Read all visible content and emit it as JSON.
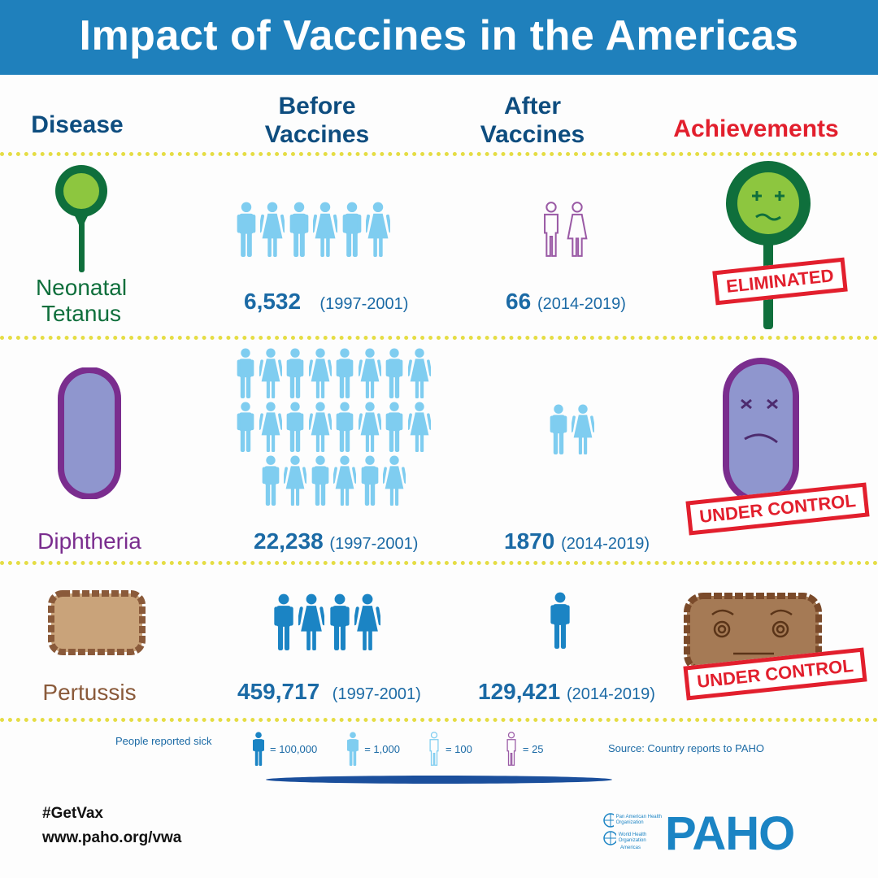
{
  "title": "Impact of Vaccines in the Americas",
  "columns": {
    "disease": "Disease",
    "before": "Before\nVaccines",
    "after": "After\nVaccines",
    "achievements": "Achievements"
  },
  "rows": [
    {
      "name": "Neonatal\nTetanus",
      "before_value": "6,532",
      "before_years": "(1997-2001)",
      "after_value": "66",
      "after_years": "(2014-2019)",
      "stamp": "ELIMINATED",
      "color": "#0f6f3c"
    },
    {
      "name": "Diphtheria",
      "before_value": "22,238",
      "before_years": "(1997-2001)",
      "after_value": "1870",
      "after_years": "(2014-2019)",
      "stamp": "UNDER CONTROL",
      "color": "#7a2d8e"
    },
    {
      "name": "Pertussis",
      "before_value": "459,717",
      "before_years": "(1997-2001)",
      "after_value": "129,421",
      "after_years": "(2014-2019)",
      "stamp": "UNDER CONTROL",
      "color": "#8a5a3a"
    }
  ],
  "legend": {
    "label": "People reported sick",
    "items": [
      "= 100,000",
      "= 1,000",
      "= 100",
      "= 25"
    ],
    "source": "Source: Country reports to PAHO"
  },
  "footer": {
    "hashtag": "#GetVax",
    "url": "www.paho.org/vwa",
    "org1": "Pan American Health Organization",
    "org2": "World Health Organization",
    "region": "Americas",
    "logo": "PAHO"
  },
  "colors": {
    "banner": "#1f80bc",
    "accent_red": "#e21f2d",
    "figure_light": "#7fcdf0",
    "figure_dark": "#1b84c4",
    "figure_purple": "#9a5aa5",
    "dots": "#e5dd45"
  }
}
